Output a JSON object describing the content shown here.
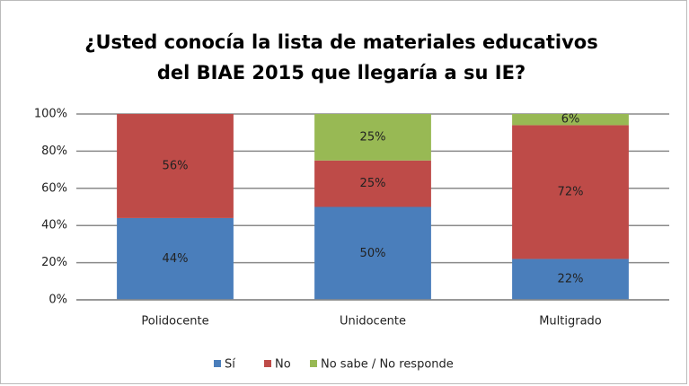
{
  "chart_data": {
    "type": "stacked_bar",
    "title": [
      "¿Usted conocía la lista de materiales educativos",
      "del BIAE 2015 que llegaría a su IE?"
    ],
    "categories": [
      "Polidocente",
      "Unidocente",
      "Multigrado"
    ],
    "series": [
      {
        "name": "Sí",
        "color": "#4a7ebb",
        "values": [
          44,
          50,
          22
        ],
        "value_labels": [
          "44%",
          "50%",
          "22%"
        ]
      },
      {
        "name": "No",
        "color": "#be4b48",
        "values": [
          56,
          25,
          72
        ],
        "value_labels": [
          "56%",
          "25%",
          "72%"
        ]
      },
      {
        "name": "No sabe / No responde",
        "color": "#98b954",
        "values": [
          0,
          25,
          6
        ],
        "value_labels": [
          null,
          "25%",
          "6%"
        ]
      }
    ],
    "ylim": [
      0,
      100
    ],
    "yticks": [
      {
        "value": 0,
        "label": "0%"
      },
      {
        "value": 20,
        "label": "20%"
      },
      {
        "value": 40,
        "label": "40%"
      },
      {
        "value": 60,
        "label": "60%"
      },
      {
        "value": 80,
        "label": "80%"
      },
      {
        "value": 100,
        "label": "100%"
      }
    ],
    "grid": true,
    "legend": "bottom"
  }
}
